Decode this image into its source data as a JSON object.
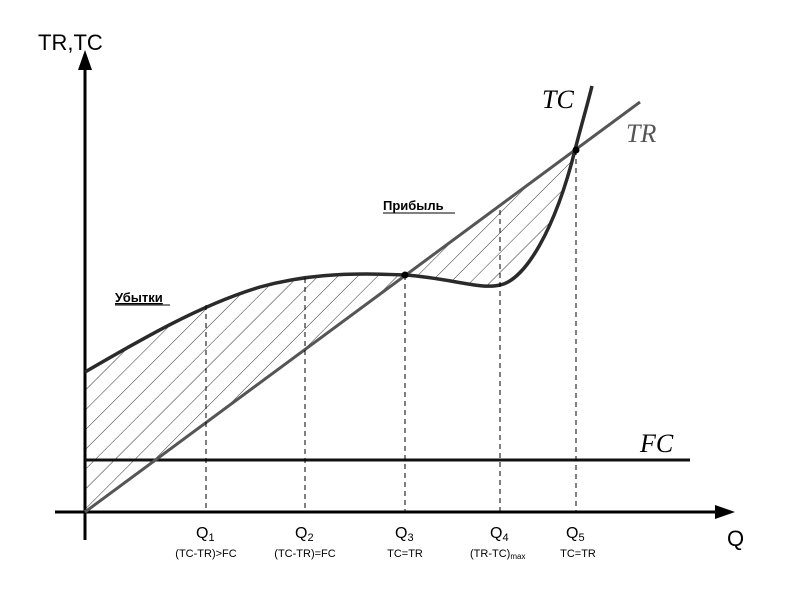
{
  "axes": {
    "y_label": "TR,TC",
    "x_label": "Q"
  },
  "curves": {
    "tc_label": "TC",
    "tr_label": "TR",
    "fc_label": "FC"
  },
  "regions": {
    "loss_label": "Убытки",
    "profit_label": "Прибыль"
  },
  "points": [
    {
      "q": "Q",
      "sub": "1",
      "condition": "(TC-TR)>FC"
    },
    {
      "q": "Q",
      "sub": "2",
      "condition": "(TC-TR)=FC"
    },
    {
      "q": "Q",
      "sub": "3",
      "condition": "TC=TR"
    },
    {
      "q": "Q",
      "sub": "4",
      "condition": "(TR-TC)",
      "condition_sub": "max"
    },
    {
      "q": "Q",
      "sub": "5",
      "condition": "TC=TR"
    }
  ],
  "colors": {
    "axis": "#000000",
    "tc_curve": "#2a2a2a",
    "tr_line": "#555555",
    "fc_line": "#111111",
    "hatch": "#333333"
  }
}
